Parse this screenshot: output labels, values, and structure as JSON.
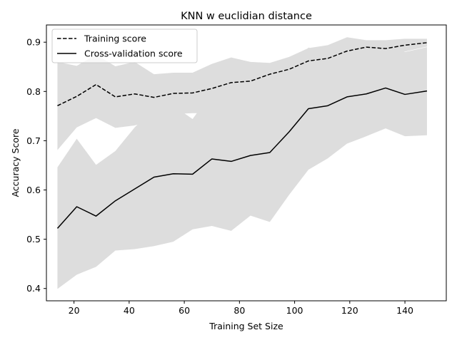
{
  "chart_data": {
    "type": "line",
    "title": "KNN w euclidian distance",
    "xlabel": "Training Set Size",
    "ylabel": "Accuracy Score",
    "xlim": [
      10,
      155
    ],
    "ylim": [
      0.375,
      0.935
    ],
    "x_ticks": [
      20,
      40,
      60,
      80,
      100,
      120,
      140
    ],
    "y_ticks": [
      0.4,
      0.5,
      0.6,
      0.7,
      0.8,
      0.9
    ],
    "x_tick_labels": [
      "20",
      "40",
      "60",
      "80",
      "100",
      "120",
      "140"
    ],
    "y_tick_labels": [
      "0.4",
      "0.5",
      "0.6",
      "0.7",
      "0.8",
      "0.9"
    ],
    "grid": false,
    "legend_position": "top-left",
    "x": [
      14,
      21,
      28,
      35,
      42,
      49,
      56,
      63,
      70,
      77,
      84,
      91,
      98,
      105,
      112,
      119,
      126,
      133,
      140,
      148
    ],
    "series": [
      {
        "name": "Training score",
        "style": "dashed",
        "color": "#000000",
        "values": [
          0.771,
          0.79,
          0.814,
          0.789,
          0.795,
          0.788,
          0.796,
          0.797,
          0.806,
          0.818,
          0.821,
          0.835,
          0.845,
          0.862,
          0.867,
          0.882,
          0.89,
          0.887,
          0.894,
          0.899
        ],
        "band_upper": [
          0.86,
          0.852,
          0.875,
          0.851,
          0.86,
          0.835,
          0.838,
          0.838,
          0.856,
          0.869,
          0.86,
          0.858,
          0.87,
          0.888,
          0.894,
          0.91,
          0.904,
          0.904,
          0.907,
          0.907
        ],
        "band_lower": [
          0.681,
          0.727,
          0.746,
          0.726,
          0.731,
          0.742,
          0.754,
          0.756,
          0.756,
          0.768,
          0.782,
          0.812,
          0.822,
          0.836,
          0.84,
          0.854,
          0.876,
          0.87,
          0.881,
          0.891
        ]
      },
      {
        "name": "Cross-validation score",
        "style": "solid",
        "color": "#000000",
        "values": [
          0.522,
          0.566,
          0.547,
          0.578,
          0.602,
          0.626,
          0.633,
          0.632,
          0.663,
          0.658,
          0.67,
          0.676,
          0.718,
          0.765,
          0.771,
          0.789,
          0.795,
          0.807,
          0.794,
          0.801
        ],
        "band_upper": [
          0.646,
          0.704,
          0.651,
          0.679,
          0.727,
          0.765,
          0.771,
          0.744,
          0.798,
          0.799,
          0.792,
          0.817,
          0.845,
          0.889,
          0.878,
          0.885,
          0.881,
          0.889,
          0.88,
          0.89
        ],
        "band_lower": [
          0.399,
          0.428,
          0.444,
          0.477,
          0.48,
          0.486,
          0.495,
          0.52,
          0.527,
          0.517,
          0.548,
          0.535,
          0.59,
          0.641,
          0.664,
          0.694,
          0.709,
          0.725,
          0.709,
          0.711
        ]
      }
    ],
    "band_color": "#dddddd",
    "line_color": "#000000"
  }
}
